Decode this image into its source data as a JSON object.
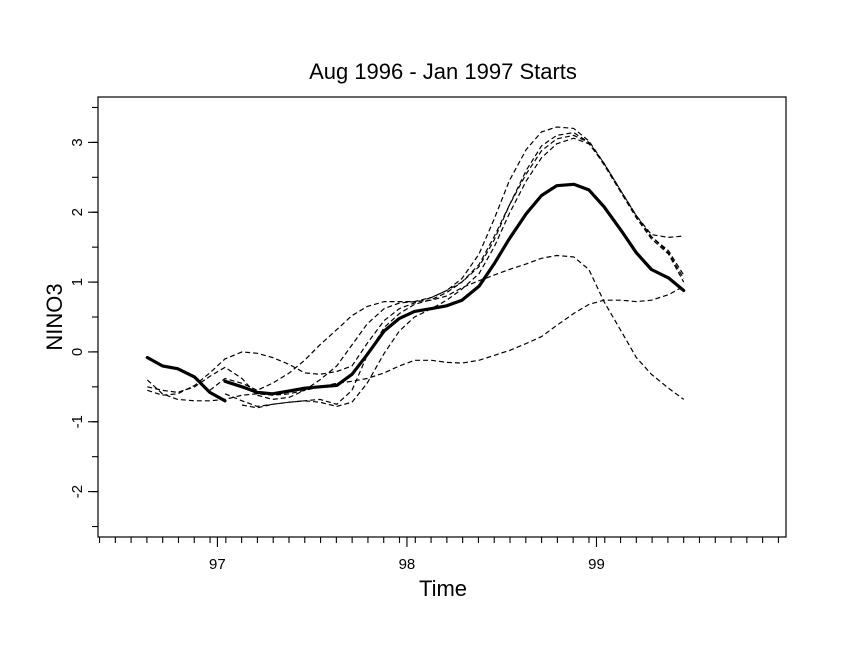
{
  "chart_data": {
    "type": "line",
    "title": "Aug 1996 - Jan 1997 Starts",
    "xlabel": "Time",
    "ylabel": "NINO3",
    "xlim": [
      96.37,
      100.0
    ],
    "ylim": [
      -2.65,
      3.65
    ],
    "x_ticks": [
      97,
      98,
      99
    ],
    "x_tick_labels": [
      "97",
      "98",
      "99"
    ],
    "y_ticks": [
      -2,
      -1,
      0,
      1,
      2,
      3
    ],
    "y_tick_labels": [
      "-2",
      "-1",
      "0",
      "1",
      "2",
      "3"
    ],
    "x_minor_tick_step": 0.0833,
    "y_minor_tick_step": 0.5,
    "grid": false,
    "series": [
      {
        "style": "solid-bold",
        "x": [
          96.63,
          96.71,
          96.79,
          96.88,
          96.96,
          97.04
        ],
        "y": [
          -0.08,
          -0.2,
          -0.24,
          -0.36,
          -0.58,
          -0.7
        ]
      },
      {
        "style": "solid-bold",
        "x": [
          97.04,
          97.13,
          97.21,
          97.29,
          97.38,
          97.46,
          97.54,
          97.63,
          97.71,
          97.79,
          97.88,
          97.96,
          98.04,
          98.13,
          98.21,
          98.29,
          98.38,
          98.46,
          98.54,
          98.63,
          98.71,
          98.79,
          98.88,
          98.96,
          99.04,
          99.13,
          99.21,
          99.29,
          99.38,
          99.46
        ],
        "y": [
          -0.42,
          -0.5,
          -0.58,
          -0.6,
          -0.56,
          -0.52,
          -0.5,
          -0.48,
          -0.32,
          -0.04,
          0.3,
          0.48,
          0.58,
          0.62,
          0.66,
          0.74,
          0.94,
          1.26,
          1.62,
          1.98,
          2.24,
          2.38,
          2.4,
          2.32,
          2.08,
          1.74,
          1.42,
          1.18,
          1.06,
          0.88
        ]
      },
      {
        "style": "dashed",
        "x": [
          96.63,
          96.71,
          96.79,
          96.88,
          96.96,
          97.04,
          97.13,
          97.21,
          97.29,
          97.38,
          97.46,
          97.54,
          97.63,
          97.71,
          97.79,
          97.88,
          97.96,
          98.04,
          98.13,
          98.21,
          98.29,
          98.38,
          98.46,
          98.54,
          98.63,
          98.71,
          98.79,
          98.88,
          98.96,
          99.04,
          99.13,
          99.21,
          99.29,
          99.38,
          99.46
        ],
        "y": [
          -0.4,
          -0.6,
          -0.68,
          -0.7,
          -0.7,
          -0.68,
          -0.62,
          -0.6,
          -0.62,
          -0.6,
          -0.55,
          -0.5,
          -0.45,
          -0.42,
          -0.38,
          -0.3,
          -0.2,
          -0.12,
          -0.12,
          -0.15,
          -0.16,
          -0.12,
          -0.05,
          0.02,
          0.12,
          0.22,
          0.38,
          0.55,
          0.68,
          0.74,
          0.74,
          0.72,
          0.74,
          0.82,
          0.94
        ]
      },
      {
        "style": "dashed",
        "x": [
          96.63,
          96.71,
          96.79,
          96.88,
          96.96,
          97.04,
          97.13,
          97.21,
          97.29,
          97.38,
          97.46,
          97.54,
          97.63,
          97.71,
          97.79,
          97.88,
          97.96,
          98.04,
          98.13,
          98.21,
          98.29,
          98.38,
          98.46,
          98.54,
          98.63,
          98.71,
          98.79,
          98.88,
          98.96,
          99.04,
          99.13,
          99.21,
          99.29,
          99.38,
          99.46
        ],
        "y": [
          -0.5,
          -0.55,
          -0.58,
          -0.5,
          -0.35,
          -0.22,
          -0.38,
          -0.62,
          -0.68,
          -0.65,
          -0.55,
          -0.4,
          -0.2,
          0.1,
          0.4,
          0.62,
          0.7,
          0.72,
          0.74,
          0.8,
          0.92,
          1.02,
          1.1,
          1.18,
          1.26,
          1.34,
          1.38,
          1.36,
          1.18,
          0.72,
          0.3,
          -0.08,
          -0.32,
          -0.52,
          -0.68
        ]
      },
      {
        "style": "dashed",
        "x": [
          96.63,
          96.71,
          96.79,
          96.88,
          96.96,
          97.04,
          97.13,
          97.21,
          97.29,
          97.38,
          97.46,
          97.54,
          97.63,
          97.71,
          97.79,
          97.88,
          97.96,
          98.04,
          98.13,
          98.21,
          98.29,
          98.38,
          98.46,
          98.54,
          98.63,
          98.71,
          98.79,
          98.88,
          98.96,
          99.04,
          99.13,
          99.21,
          99.29,
          99.38,
          99.46
        ],
        "y": [
          -0.55,
          -0.62,
          -0.6,
          -0.48,
          -0.3,
          -0.1,
          0.0,
          -0.02,
          -0.08,
          -0.18,
          -0.3,
          -0.32,
          -0.28,
          -0.2,
          0.12,
          0.45,
          0.62,
          0.7,
          0.78,
          0.88,
          1.05,
          1.4,
          1.9,
          2.45,
          2.9,
          3.15,
          3.22,
          3.2,
          3.02,
          2.7,
          2.3,
          1.95,
          1.68,
          1.64,
          1.66
        ]
      },
      {
        "style": "dashed",
        "x": [
          96.96,
          97.04,
          97.13,
          97.21,
          97.29,
          97.38,
          97.46,
          97.54,
          97.63,
          97.71,
          97.79,
          97.88,
          97.96,
          98.04,
          98.13,
          98.21,
          98.29,
          98.38,
          98.46,
          98.54,
          98.63,
          98.71,
          98.79,
          98.88,
          98.96,
          99.04,
          99.13,
          99.21,
          99.29,
          99.38,
          99.46
        ],
        "y": [
          -0.55,
          -0.38,
          -0.45,
          -0.55,
          -0.45,
          -0.3,
          -0.12,
          0.1,
          0.32,
          0.52,
          0.65,
          0.72,
          0.72,
          0.72,
          0.78,
          0.88,
          1.0,
          1.22,
          1.6,
          2.1,
          2.6,
          2.95,
          3.1,
          3.14,
          3.0,
          2.68,
          2.28,
          1.92,
          1.62,
          1.4,
          1.0
        ]
      },
      {
        "style": "dashed",
        "x": [
          97.04,
          97.13,
          97.21,
          97.29,
          97.38,
          97.46,
          97.54,
          97.63,
          97.71,
          97.79,
          97.88,
          97.96,
          98.04,
          98.13,
          98.21,
          98.29,
          98.38,
          98.46,
          98.54,
          98.63,
          98.71,
          98.79,
          98.88,
          98.96,
          99.04,
          99.13,
          99.21,
          99.29,
          99.38,
          99.46
        ],
        "y": [
          -0.6,
          -0.7,
          -0.78,
          -0.75,
          -0.72,
          -0.7,
          -0.68,
          -0.75,
          -0.55,
          -0.05,
          0.35,
          0.55,
          0.68,
          0.75,
          0.85,
          1.0,
          1.25,
          1.65,
          2.1,
          2.55,
          2.88,
          3.05,
          3.1,
          3.0,
          2.7,
          2.3,
          1.95,
          1.65,
          1.42,
          1.05
        ]
      },
      {
        "style": "dashed",
        "x": [
          97.13,
          97.21,
          97.29,
          97.38,
          97.46,
          97.54,
          97.63,
          97.71,
          97.79,
          97.88,
          97.96,
          98.04,
          98.13,
          98.21,
          98.29,
          98.38,
          98.46,
          98.54,
          98.63,
          98.71,
          98.79,
          98.88,
          98.96,
          99.04,
          99.13,
          99.21,
          99.29,
          99.38,
          99.46
        ],
        "y": [
          -0.76,
          -0.8,
          -0.75,
          -0.72,
          -0.7,
          -0.72,
          -0.78,
          -0.72,
          -0.45,
          -0.02,
          0.3,
          0.5,
          0.62,
          0.74,
          0.9,
          1.12,
          1.5,
          1.98,
          2.45,
          2.78,
          2.98,
          3.06,
          2.98,
          2.7,
          2.3,
          1.95,
          1.65,
          1.45,
          1.1
        ]
      }
    ]
  }
}
